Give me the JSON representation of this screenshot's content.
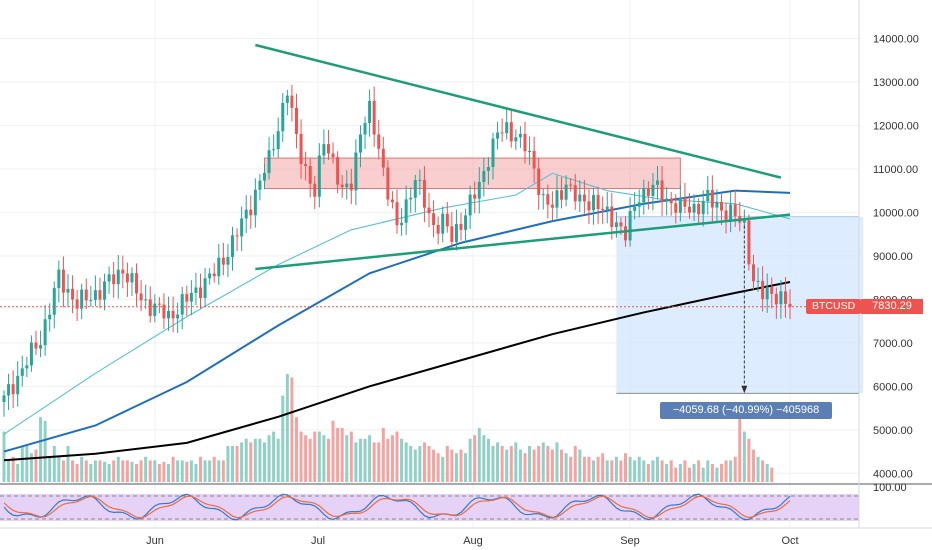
{
  "symbol": "BTCUSD",
  "last_price": "7830.29",
  "measure": {
    "label": "−4059.68 (−40.99%) −405968"
  },
  "price_axis": {
    "ticks": [
      "14000.00",
      "13000.00",
      "12000.00",
      "11000.00",
      "10000.00",
      "9000.00",
      "8000.00",
      "7000.00",
      "6000.00",
      "5000.00",
      "4000.00"
    ],
    "tick_values": [
      14000,
      13000,
      12000,
      11000,
      10000,
      9000,
      8000,
      7000,
      6000,
      5000,
      4000
    ]
  },
  "oscillator_axis": {
    "top_tick": "100.00"
  },
  "time_axis": {
    "labels": [
      "Jun",
      "Jul",
      "Aug",
      "Sep",
      "Oct"
    ]
  },
  "colors": {
    "up": "#26a69a",
    "down": "#ef5350",
    "ma_fast": "#56c2d6",
    "ma_mid": "#1f6fbf",
    "ma_slow": "#000000",
    "trendline": "#1e9e78",
    "zone": "#f4a6a6",
    "measure_box": "#cfe6ff",
    "osc_bg": "#e7d2f7"
  },
  "chart_data": {
    "type": "candlestick",
    "title": "BTCUSD",
    "ylim": [
      3800,
      14700
    ],
    "x_labels": [
      "Jun",
      "Jul",
      "Aug",
      "Sep",
      "Oct"
    ],
    "anchors": [
      {
        "i": 0,
        "v": 5700
      },
      {
        "i": 8,
        "v": 7100
      },
      {
        "i": 12,
        "v": 8500
      },
      {
        "i": 16,
        "v": 7900
      },
      {
        "i": 21,
        "v": 8200
      },
      {
        "i": 26,
        "v": 8700
      },
      {
        "i": 30,
        "v": 8000
      },
      {
        "i": 36,
        "v": 7600
      },
      {
        "i": 40,
        "v": 8000
      },
      {
        "i": 46,
        "v": 8600
      },
      {
        "i": 50,
        "v": 9300
      },
      {
        "i": 54,
        "v": 10200
      },
      {
        "i": 58,
        "v": 11200
      },
      {
        "i": 62,
        "v": 12800
      },
      {
        "i": 64,
        "v": 11700
      },
      {
        "i": 66,
        "v": 11000
      },
      {
        "i": 68,
        "v": 10400
      },
      {
        "i": 70,
        "v": 11700
      },
      {
        "i": 72,
        "v": 11200
      },
      {
        "i": 74,
        "v": 10400
      },
      {
        "i": 76,
        "v": 10700
      },
      {
        "i": 78,
        "v": 11900
      },
      {
        "i": 80,
        "v": 12300
      },
      {
        "i": 82,
        "v": 11500
      },
      {
        "i": 84,
        "v": 10500
      },
      {
        "i": 86,
        "v": 9600
      },
      {
        "i": 88,
        "v": 10200
      },
      {
        "i": 90,
        "v": 10800
      },
      {
        "i": 92,
        "v": 10200
      },
      {
        "i": 94,
        "v": 9700
      },
      {
        "i": 96,
        "v": 9800
      },
      {
        "i": 98,
        "v": 9400
      },
      {
        "i": 100,
        "v": 9800
      },
      {
        "i": 104,
        "v": 10600
      },
      {
        "i": 106,
        "v": 11300
      },
      {
        "i": 108,
        "v": 11800
      },
      {
        "i": 110,
        "v": 11900
      },
      {
        "i": 112,
        "v": 11800
      },
      {
        "i": 114,
        "v": 11500
      },
      {
        "i": 116,
        "v": 11000
      },
      {
        "i": 118,
        "v": 10300
      },
      {
        "i": 120,
        "v": 10100
      },
      {
        "i": 123,
        "v": 10700
      },
      {
        "i": 126,
        "v": 10200
      },
      {
        "i": 129,
        "v": 10300
      },
      {
        "i": 132,
        "v": 9900
      },
      {
        "i": 134,
        "v": 9800
      },
      {
        "i": 136,
        "v": 9500
      },
      {
        "i": 139,
        "v": 10400
      },
      {
        "i": 142,
        "v": 10600
      },
      {
        "i": 145,
        "v": 10300
      },
      {
        "i": 148,
        "v": 10100
      },
      {
        "i": 151,
        "v": 10100
      },
      {
        "i": 154,
        "v": 10300
      },
      {
        "i": 157,
        "v": 10100
      },
      {
        "i": 160,
        "v": 9900
      },
      {
        "i": 162,
        "v": 9700
      },
      {
        "i": 164,
        "v": 8400
      },
      {
        "i": 166,
        "v": 8100
      },
      {
        "i": 168,
        "v": 8200
      },
      {
        "i": 170,
        "v": 8000
      },
      {
        "i": 172,
        "v": 7830
      }
    ],
    "ma_fast": [
      [
        0,
        4900
      ],
      [
        20,
        6300
      ],
      [
        40,
        7600
      ],
      [
        60,
        8800
      ],
      [
        76,
        9600
      ],
      [
        96,
        10100
      ],
      [
        112,
        10400
      ],
      [
        120,
        10900
      ],
      [
        132,
        10500
      ],
      [
        144,
        10300
      ],
      [
        160,
        10200
      ],
      [
        172,
        9850
      ]
    ],
    "ma_mid": [
      [
        0,
        4500
      ],
      [
        20,
        5100
      ],
      [
        40,
        6100
      ],
      [
        60,
        7400
      ],
      [
        80,
        8600
      ],
      [
        100,
        9300
      ],
      [
        120,
        9800
      ],
      [
        140,
        10200
      ],
      [
        160,
        10500
      ],
      [
        172,
        10450
      ]
    ],
    "ma_slow": [
      [
        0,
        4300
      ],
      [
        20,
        4450
      ],
      [
        40,
        4700
      ],
      [
        60,
        5300
      ],
      [
        80,
        6000
      ],
      [
        100,
        6600
      ],
      [
        120,
        7200
      ],
      [
        140,
        7700
      ],
      [
        160,
        8150
      ],
      [
        172,
        8400
      ]
    ],
    "trend_upper": [
      [
        55,
        13850
      ],
      [
        170,
        10800
      ]
    ],
    "trend_lower": [
      [
        55,
        8700
      ],
      [
        172,
        9950
      ]
    ],
    "zone_high": 11250,
    "zone_low": 10550,
    "zone_i": [
      57,
      148
    ],
    "measure_box_i": [
      134,
      188
    ],
    "measure_box_v": [
      5840,
      9900
    ],
    "volume": [
      0.7,
      0.3,
      0.35,
      0.25,
      0.5,
      0.5,
      0.4,
      0.45,
      0.9,
      0.85,
      0.35,
      0.5,
      0.35,
      0.3,
      0.5,
      0.3,
      0.25,
      0.35,
      0.3,
      0.25,
      0.3,
      0.3,
      0.28,
      0.25,
      0.3,
      0.35,
      0.3,
      0.3,
      0.28,
      0.25,
      0.3,
      0.35,
      0.3,
      0.3,
      0.25,
      0.28,
      0.25,
      0.35,
      0.3,
      0.3,
      0.28,
      0.3,
      0.25,
      0.35,
      0.3,
      0.3,
      0.35,
      0.3,
      0.3,
      0.5,
      0.5,
      0.5,
      0.55,
      0.6,
      0.55,
      0.6,
      0.6,
      0.55,
      0.65,
      0.7,
      0.6,
      1.2,
      1.5,
      1.45,
      0.9,
      0.7,
      0.65,
      0.6,
      0.7,
      0.7,
      0.65,
      0.6,
      0.85,
      0.75,
      0.75,
      0.65,
      0.7,
      0.55,
      0.6,
      0.6,
      0.65,
      0.55,
      0.55,
      0.75,
      0.6,
      0.65,
      0.7,
      0.6,
      0.55,
      0.5,
      0.45,
      0.5,
      0.55,
      0.5,
      0.45,
      0.4,
      0.35,
      0.5,
      0.45,
      0.4,
      0.45,
      0.4,
      0.6,
      0.65,
      0.75,
      0.65,
      0.6,
      0.5,
      0.55,
      0.5,
      0.45,
      0.5,
      0.55,
      0.45,
      0.4,
      0.5,
      0.45,
      0.5,
      0.55,
      0.5,
      0.45,
      0.55,
      0.45,
      0.4,
      0.35,
      0.5,
      0.45,
      0.35,
      0.35,
      0.3,
      0.35,
      0.4,
      0.3,
      0.3,
      0.35,
      0.3,
      0.4,
      0.35,
      0.3,
      0.35,
      0.3,
      0.25,
      0.3,
      0.35,
      0.3,
      0.25,
      0.3,
      0.2,
      0.25,
      0.3,
      0.2,
      0.25,
      0.3,
      0.2,
      0.3,
      0.25,
      0.2,
      0.25,
      0.3,
      0.3,
      0.35,
      1.05,
      0.7,
      0.6,
      0.45,
      0.35,
      0.3,
      0.25,
      0.2
    ]
  }
}
